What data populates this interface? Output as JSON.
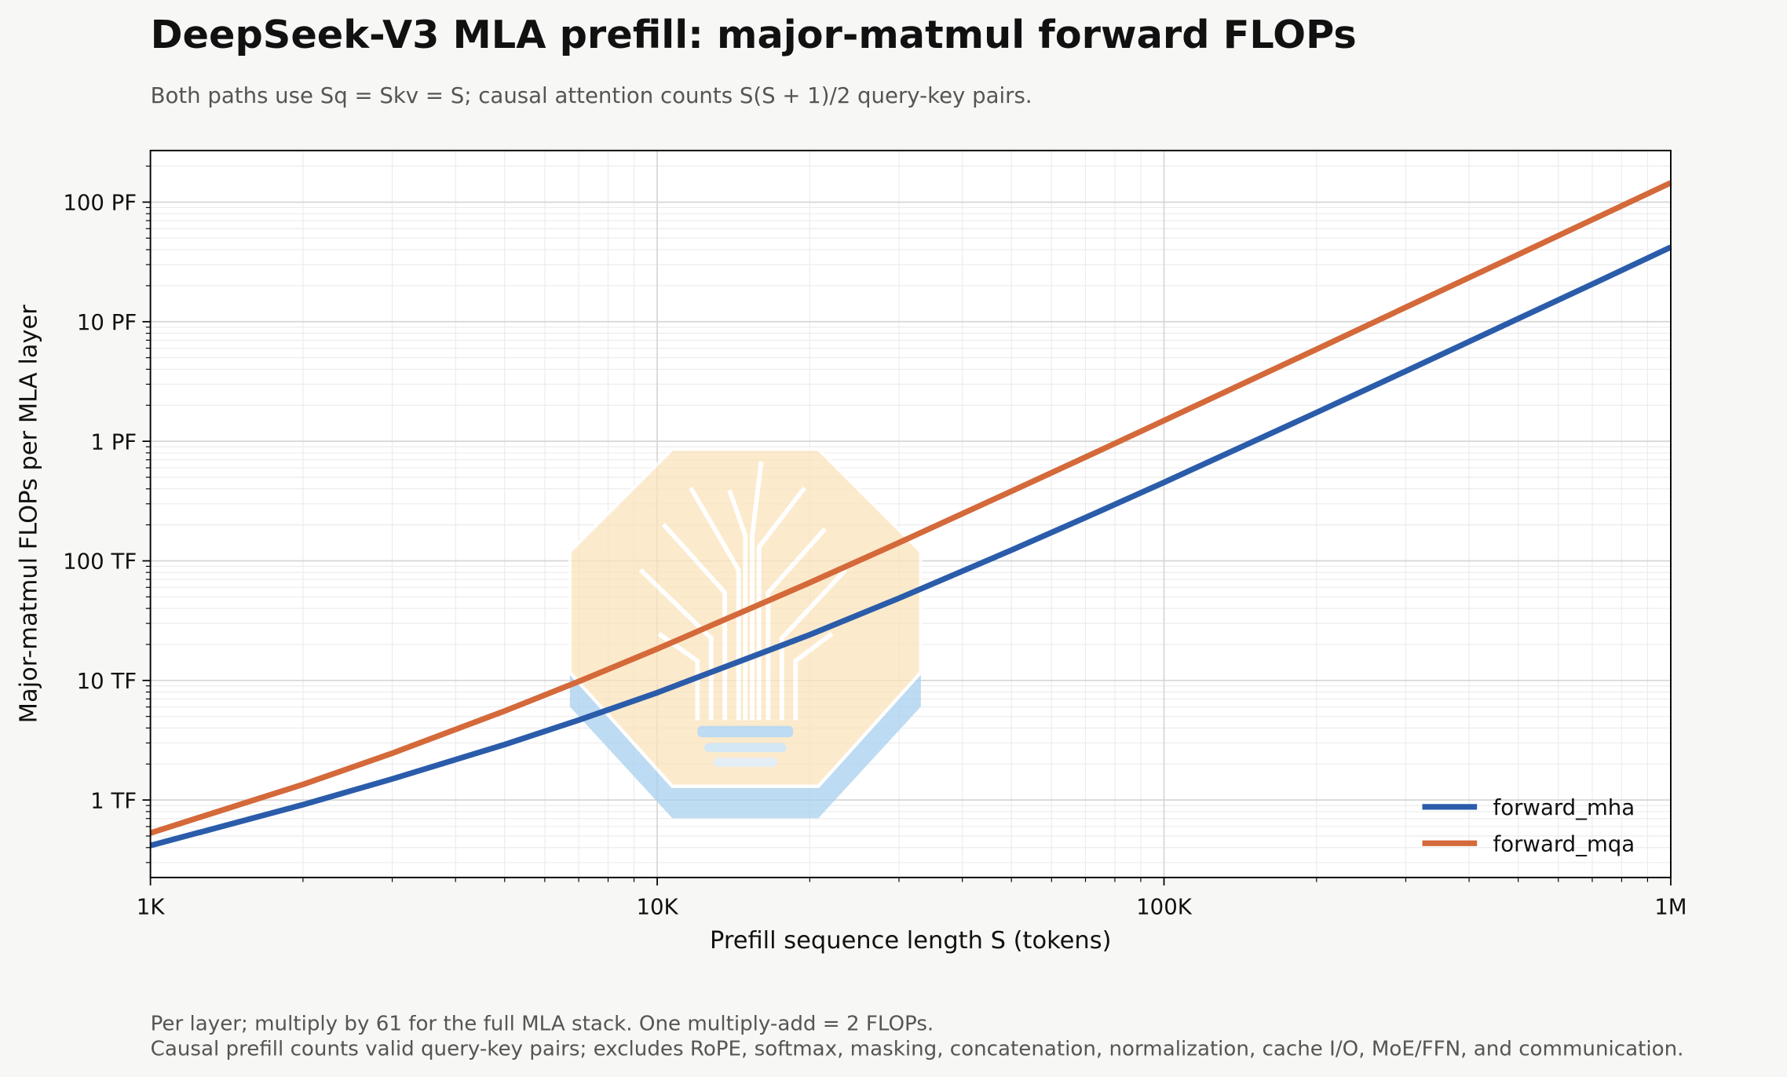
{
  "chart_data": {
    "type": "line",
    "title": "DeepSeek-V3 MLA prefill: major-matmul forward FLOPs",
    "subtitle": "Both paths use Sq = Skv = S; causal attention counts S(S + 1)/2 query-key pairs.",
    "x_label": "Prefill sequence length S (tokens)",
    "y_label": "Major-matmul FLOPs per MLA layer",
    "notes": [
      "Per layer; multiply by 61 for the full MLA stack. One multiply-add = 2 FLOPs.",
      "Causal prefill counts valid query-key pairs; excludes RoPE, softmax, masking, concatenation, normalization, cache I/O, MoE/FFN, and communication."
    ],
    "x": [
      1000,
      2000,
      3000,
      5000,
      7000,
      10000,
      20000,
      30000,
      50000,
      70000,
      100000,
      200000,
      300000,
      500000,
      700000,
      1000000
    ],
    "series": [
      {
        "name": "forward_mha",
        "color": "#2a5caa",
        "values": [
          416000000000.0,
          914000000000.0,
          1500000000000.0,
          2910000000000.0,
          4660000000000.0,
          7900000000000.0,
          24100000000000.0,
          48700000000000.0,
          123000000000000.0,
          230000000000000.0,
          453000000000000.0,
          1740000000000000.0,
          3860000000000000.0,
          1.06e+16,
          2.06e+16,
          4.2e+16
        ]
      },
      {
        "name": "forward_mqa",
        "color": "#d4693a",
        "values": [
          530000000000.0,
          1350000000000.0,
          2460000000000.0,
          5550000000000.0,
          9800000000000.0,
          18350000000000.0,
          65700000000000.0,
          142000000000000.0,
          382000000000000.0,
          737000000000000.0,
          1490000000000000.0,
          5880000000000000.0,
          1.32e+16,
          3.64e+16,
          7.13e+16,
          1.45e+17
        ]
      }
    ],
    "xlim": [
      1000,
      1000000
    ],
    "ylim": [
      225000000000.0,
      2.7e+17
    ],
    "xticks": [
      {
        "value": 1000,
        "label": "1K"
      },
      {
        "value": 10000,
        "label": "10K"
      },
      {
        "value": 100000,
        "label": "100K"
      },
      {
        "value": 1000000,
        "label": "1M"
      }
    ],
    "yticks": [
      {
        "value": 1000000000000.0,
        "label": "1 TF"
      },
      {
        "value": 10000000000000.0,
        "label": "10 TF"
      },
      {
        "value": 100000000000000.0,
        "label": "100 TF"
      },
      {
        "value": 1000000000000000.0,
        "label": "1 PF"
      },
      {
        "value": 1e+16,
        "label": "10 PF"
      },
      {
        "value": 1e+17,
        "label": "100 PF"
      }
    ],
    "xscale": "log",
    "yscale": "log",
    "grid": true,
    "legend": "lower right"
  }
}
